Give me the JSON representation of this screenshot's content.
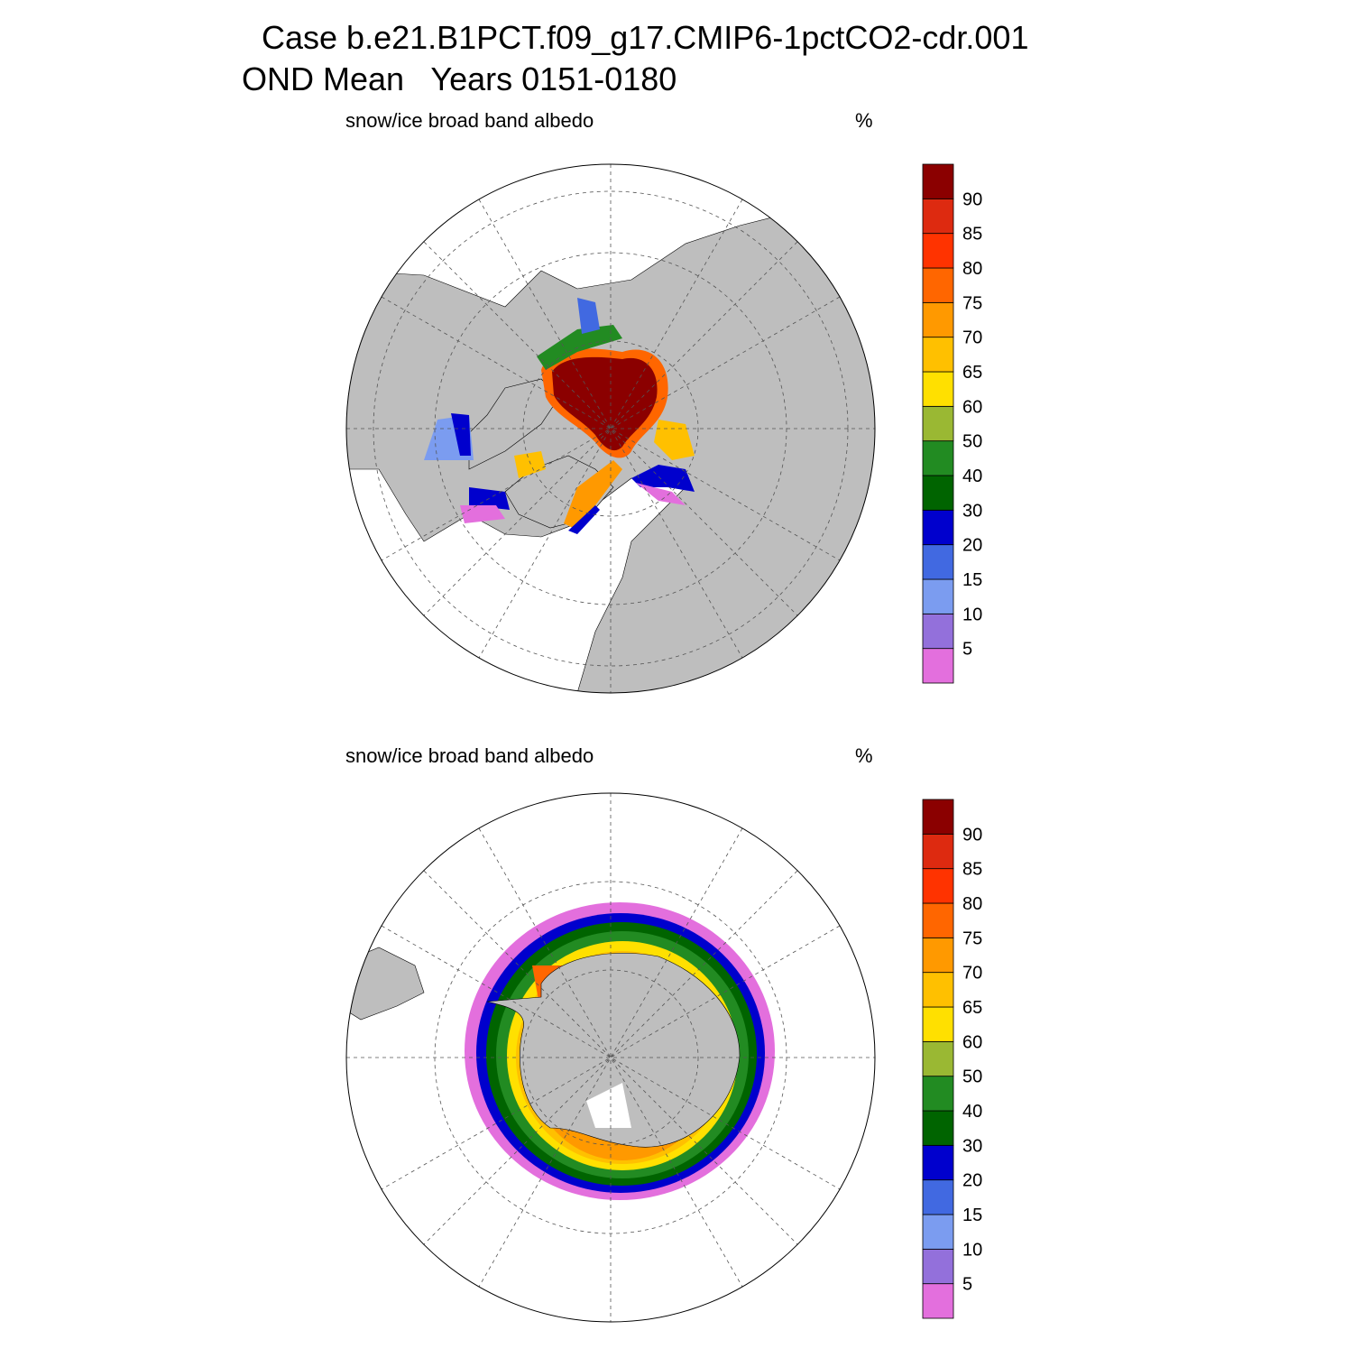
{
  "header": {
    "title": "Case b.e21.B1PCT.f09_g17.CMIP6-1pctCO2-cdr.001",
    "subtitle": "OND Mean   Years 0151-0180"
  },
  "panels": [
    {
      "title": "snow/ice broad band albedo",
      "units": "%"
    },
    {
      "title": "snow/ice broad band albedo",
      "units": "%"
    }
  ],
  "colorbar": {
    "levels": [
      5,
      10,
      15,
      20,
      30,
      40,
      50,
      60,
      65,
      70,
      75,
      80,
      85,
      90
    ],
    "colors": [
      "#e36fdd",
      "#9370db",
      "#7b9cf0",
      "#4169e1",
      "#0000cd",
      "#006400",
      "#228b22",
      "#9ab833",
      "#ffe000",
      "#ffc000",
      "#ff9900",
      "#ff6600",
      "#ff3300",
      "#dd2a10",
      "#8b0000"
    ]
  }
}
